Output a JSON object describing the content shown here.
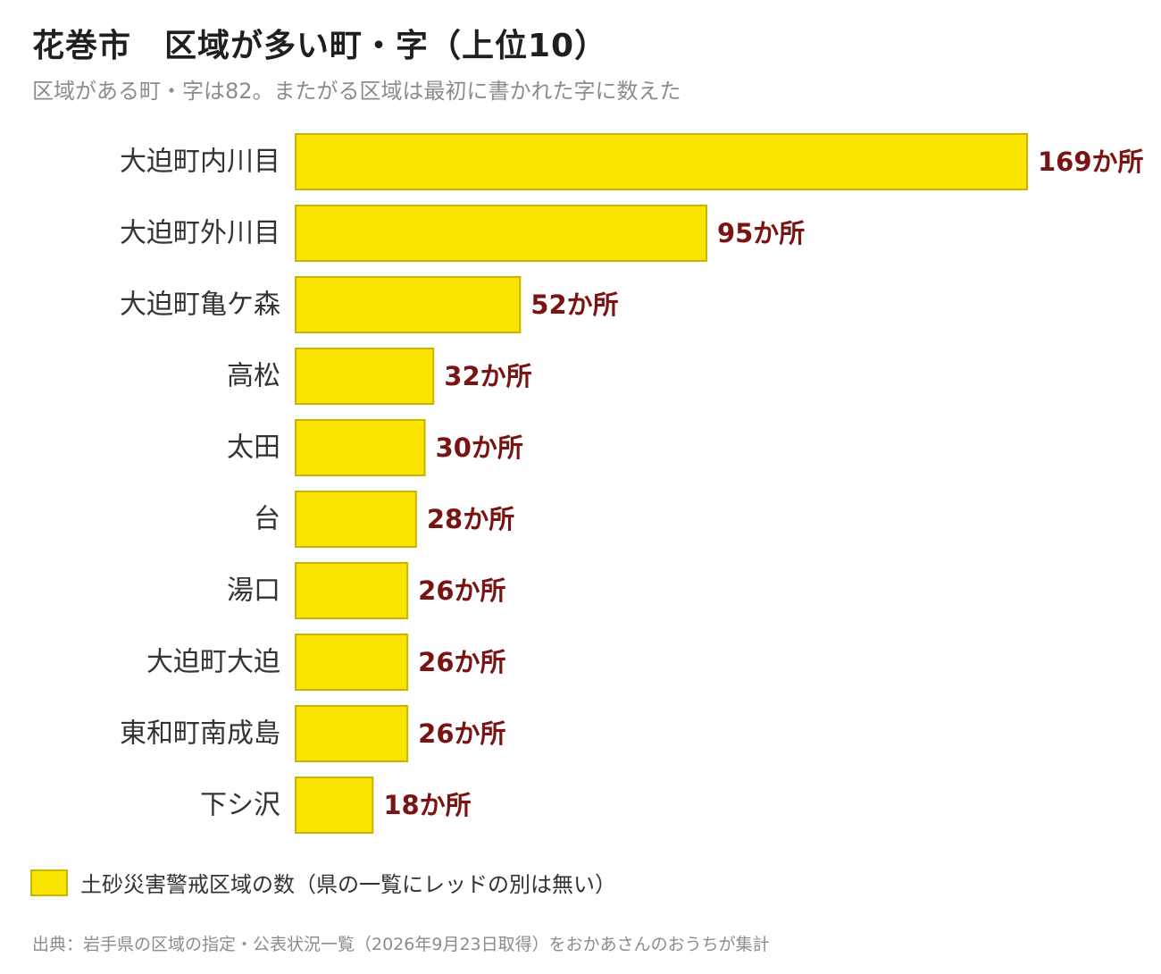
{
  "header": {
    "title": "花巻市　区域が多い町・字（上位10）",
    "subtitle": "区域がある町・字は82。またがる区域は最初に書かれた字に数えた"
  },
  "colors": {
    "bar_fill": "#FAE500",
    "bar_border": "#C9B400",
    "value_label": "#7A1414",
    "category_label": "#333333"
  },
  "chart_data": {
    "type": "bar",
    "orientation": "horizontal",
    "categories": [
      "大迫町内川目",
      "大迫町外川目",
      "大迫町亀ケ森",
      "高松",
      "太田",
      "台",
      "湯口",
      "大迫町大迫",
      "東和町南成島",
      "下シ沢"
    ],
    "values": [
      169,
      95,
      52,
      32,
      30,
      28,
      26,
      26,
      26,
      18
    ],
    "data_labels": [
      "169か所",
      "95か所",
      "52か所",
      "32か所",
      "30か所",
      "28か所",
      "26か所",
      "26か所",
      "26か所",
      "18か所"
    ],
    "series": [
      {
        "name": "土砂災害警戒区域の数（県の一覧にレッドの別は無い）",
        "values": [
          169,
          95,
          52,
          32,
          30,
          28,
          26,
          26,
          26,
          18
        ]
      }
    ],
    "xlim": [
      0,
      169
    ],
    "grid": false,
    "legend_position": "bottom-left"
  },
  "legend": {
    "label": "土砂災害警戒区域の数（県の一覧にレッドの別は無い）"
  },
  "footer": {
    "source": "出典：岩手県の区域の指定・公表状況一覧（2026年9月23日取得）をおかあさんのおうちが集計"
  }
}
